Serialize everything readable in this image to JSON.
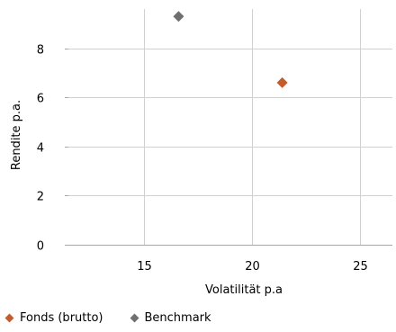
{
  "colors": {
    "fonds": "#c55a2b",
    "benchmark": "#6f6f6f",
    "grid": "#d0d0d0",
    "axis": "#a6a6a6"
  },
  "chart_data": {
    "type": "scatter",
    "xlabel": "Volatilität p.a",
    "ylabel": "Rendite p.a.",
    "xlim": [
      11.5,
      26.5
    ],
    "ylim": [
      0,
      9.6
    ],
    "xticks": [
      15,
      20,
      25
    ],
    "yticks": [
      0,
      2,
      4,
      6,
      8
    ],
    "grid": true,
    "legend_position": "bottom-left",
    "series": [
      {
        "name": "Fonds (brutto)",
        "marker": "diamond",
        "color": "#c55a2b",
        "points": [
          {
            "x": 21.4,
            "y": 6.6
          }
        ]
      },
      {
        "name": "Benchmark",
        "marker": "diamond",
        "color": "#6f6f6f",
        "points": [
          {
            "x": 16.6,
            "y": 9.3
          }
        ]
      }
    ]
  }
}
